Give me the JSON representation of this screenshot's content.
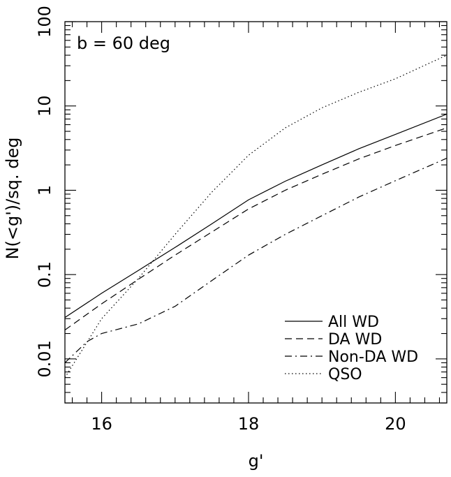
{
  "chart_data": {
    "type": "line",
    "title": "",
    "annotation": "b = 60 deg",
    "xlabel": "g'",
    "ylabel": "N(<g')/sq. deg",
    "xlim": [
      15.5,
      20.7
    ],
    "ylim": [
      0.003,
      100
    ],
    "yscale": "log",
    "grid": false,
    "legend_position": "bottom-right",
    "x_ticks": [
      16,
      18,
      20
    ],
    "x_tick_labels": [
      "16",
      "18",
      "20"
    ],
    "y_ticks": [
      0.01,
      0.1,
      1,
      10,
      100
    ],
    "y_tick_labels": [
      "0.01",
      "0.1",
      "1",
      "10",
      "100"
    ],
    "series": [
      {
        "name": "All WD",
        "style": "solid",
        "x": [
          15.5,
          16.0,
          16.5,
          17.0,
          17.5,
          18.0,
          18.5,
          19.0,
          19.5,
          20.0,
          20.7
        ],
        "y": [
          0.031,
          0.06,
          0.112,
          0.21,
          0.4,
          0.77,
          1.28,
          2.0,
          3.1,
          4.6,
          8.0
        ]
      },
      {
        "name": "DA WD",
        "style": "dashed",
        "x": [
          15.5,
          16.0,
          16.5,
          17.0,
          17.5,
          18.0,
          18.5,
          19.0,
          19.5,
          20.0,
          20.7
        ],
        "y": [
          0.022,
          0.045,
          0.088,
          0.17,
          0.32,
          0.6,
          1.0,
          1.55,
          2.35,
          3.4,
          5.5
        ]
      },
      {
        "name": "Non-DA WD",
        "style": "dashdot",
        "x": [
          15.5,
          15.8,
          16.0,
          16.5,
          17.0,
          17.5,
          18.0,
          18.5,
          19.0,
          19.5,
          20.0,
          20.7
        ],
        "y": [
          0.009,
          0.016,
          0.02,
          0.026,
          0.042,
          0.085,
          0.17,
          0.3,
          0.5,
          0.83,
          1.3,
          2.4
        ]
      },
      {
        "name": "QSO",
        "style": "dotted",
        "x": [
          15.5,
          16.0,
          16.5,
          17.0,
          17.5,
          18.0,
          18.5,
          19.0,
          19.5,
          20.0,
          20.7
        ],
        "y": [
          0.006,
          0.03,
          0.09,
          0.3,
          0.95,
          2.6,
          5.5,
          9.5,
          14.5,
          21.0,
          40.0
        ]
      }
    ]
  }
}
